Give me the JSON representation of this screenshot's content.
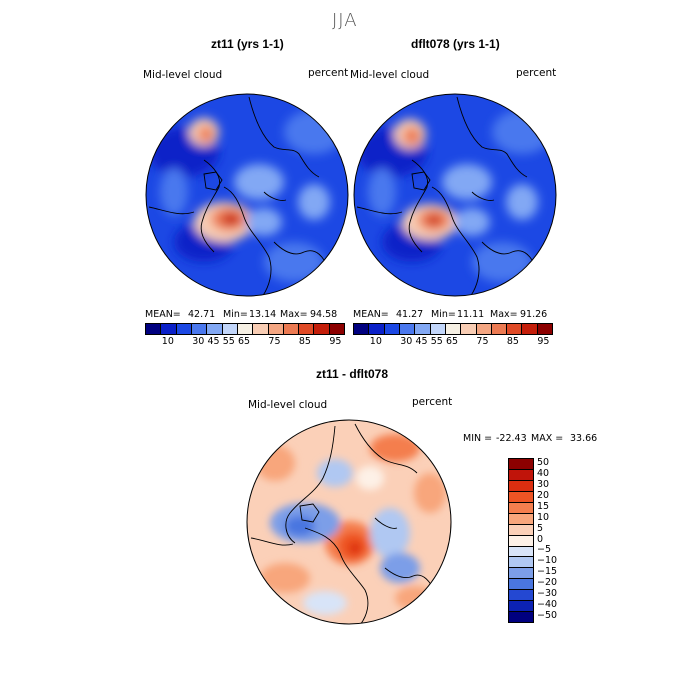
{
  "season": "JJA",
  "colors": {
    "abs_scale": [
      "#00007f",
      "#0a20c8",
      "#1c48e4",
      "#4a78ee",
      "#82a8f4",
      "#c2d6fa",
      "#f6f0e4",
      "#f8cdb4",
      "#f4a682",
      "#ec7a52",
      "#e04a26",
      "#c41e0a",
      "#8c0000"
    ],
    "diff_scale": [
      "#8c0000",
      "#c0140a",
      "#dc2e10",
      "#ee5424",
      "#f47e4e",
      "#f8a67c",
      "#fbd0b8",
      "#fdf1e7",
      "#d8e4f8",
      "#b0c8f2",
      "#7c9ee8",
      "#4a76e0",
      "#2448d2",
      "#0c22b4",
      "#00007f"
    ]
  },
  "panels": [
    {
      "title": "zt11 (yrs 1-1)",
      "variable": "Mid-level cloud",
      "units": "percent",
      "stats": {
        "mean_label": "MEAN=",
        "mean": "42.71",
        "min_label": "Min=",
        "min": "13.14",
        "max_label": "Max=",
        "max": "94.58"
      }
    },
    {
      "title": "dflt078 (yrs 1-1)",
      "variable": "Mid-level cloud",
      "units": "percent",
      "stats": {
        "mean_label": "MEAN=",
        "mean": "41.27",
        "min_label": "Min=",
        "min": "11.11",
        "max_label": "Max=",
        "max": "91.26"
      }
    }
  ],
  "abs_colorbar_ticks": [
    "10",
    "30",
    "45",
    "55",
    "65",
    "75",
    "85",
    "95"
  ],
  "diff_panel": {
    "title": "zt11 - dflt078",
    "variable": "Mid-level cloud",
    "units": "percent",
    "min_label": "MIN =",
    "min": "-22.43",
    "max_label": "MAX =",
    "max": "33.66",
    "colorbar_ticks": [
      "50",
      "40",
      "30",
      "20",
      "15",
      "10",
      "5",
      "0",
      "−5",
      "−10",
      "−15",
      "−20",
      "−30",
      "−40",
      "−50"
    ]
  }
}
